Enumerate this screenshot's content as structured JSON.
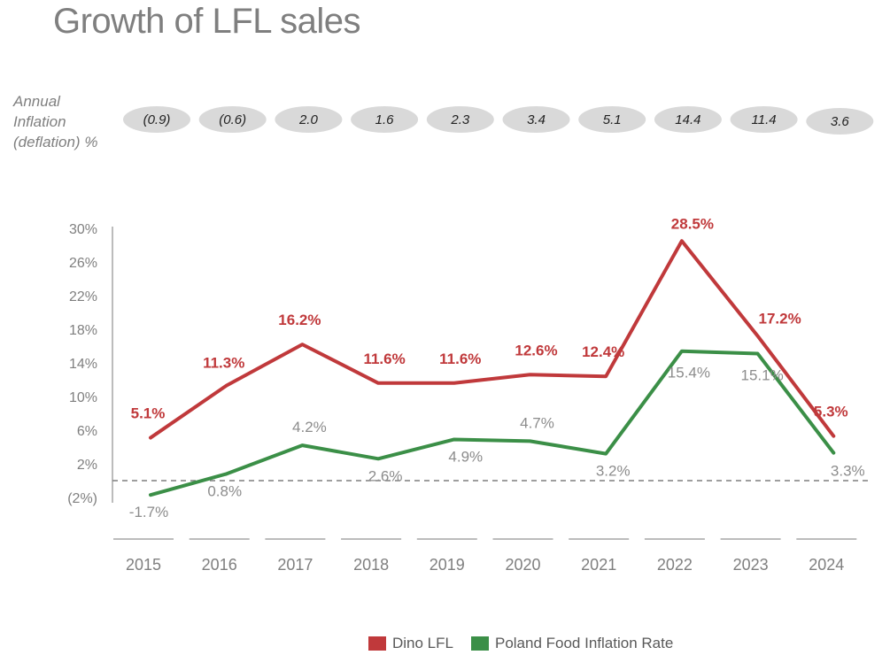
{
  "chart_data": {
    "type": "line",
    "title": "Growth of LFL sales",
    "categories": [
      "2015",
      "2016",
      "2017",
      "2018",
      "2019",
      "2020",
      "2021",
      "2022",
      "2023",
      "2024"
    ],
    "series": [
      {
        "name": "Dino LFL",
        "color": "#c0393b",
        "values": [
          5.1,
          11.3,
          16.2,
          11.6,
          11.6,
          12.6,
          12.4,
          28.5,
          17.2,
          5.3
        ],
        "labels": [
          "5.1%",
          "11.3%",
          "16.2%",
          "11.6%",
          "11.6%",
          "12.6%",
          "12.4%",
          "28.5%",
          "17.2%",
          "5.3%"
        ]
      },
      {
        "name": "Poland Food Inflation Rate",
        "color": "#3b8f47",
        "values": [
          -1.7,
          0.8,
          4.2,
          2.6,
          4.9,
          4.7,
          3.2,
          15.4,
          15.1,
          3.3
        ],
        "labels": [
          "-1.7%",
          "0.8%",
          "4.2%",
          "2.6%",
          "4.9%",
          "4.7%",
          "3.2%",
          "15.4%",
          "15.1%",
          "3.3%"
        ]
      }
    ],
    "ylim": [
      -2,
      30
    ],
    "yticks": [
      {
        "value": 30,
        "label": "30%"
      },
      {
        "value": 26,
        "label": "26%"
      },
      {
        "value": 22,
        "label": "22%"
      },
      {
        "value": 18,
        "label": "18%"
      },
      {
        "value": 14,
        "label": "14%"
      },
      {
        "value": 10,
        "label": "10%"
      },
      {
        "value": 6,
        "label": "6%"
      },
      {
        "value": 2,
        "label": "2%"
      },
      {
        "value": -2,
        "label": "(2%)"
      }
    ],
    "zero_line": "dashed",
    "legend_position": "bottom-center",
    "annual_inflation": {
      "label_lines": [
        "Annual",
        "Inflation",
        "(deflation) %"
      ],
      "values": [
        "(0.9)",
        "(0.6)",
        "2.0",
        "1.6",
        "2.3",
        "3.4",
        "5.1",
        "14.4",
        "11.4",
        "3.6"
      ]
    }
  }
}
